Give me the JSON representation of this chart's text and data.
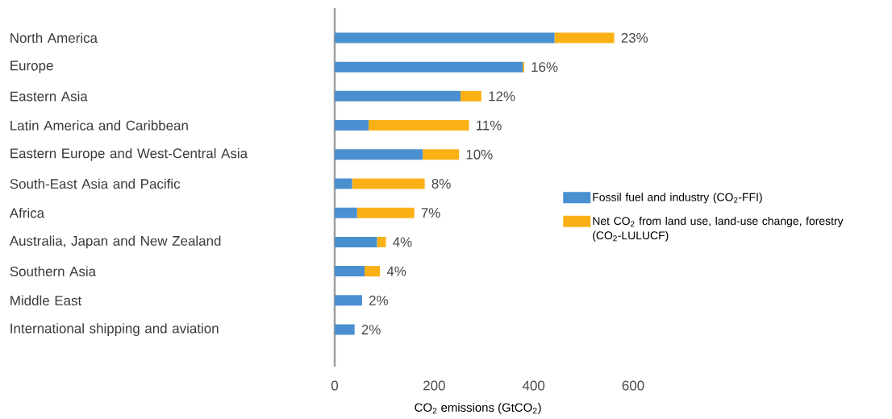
{
  "chart_data": {
    "type": "bar",
    "orientation": "horizontal",
    "stacked": true,
    "categories": [
      "North America",
      "Europe",
      "Eastern Asia",
      "Latin America and Caribbean",
      "Eastern Europe and West-Central Asia",
      "South-East Asia and Pacific",
      "Africa",
      "Australia, Japan and New Zealand",
      "Southern Asia",
      "Middle East",
      "International shipping and aviation"
    ],
    "series": [
      {
        "name": "Fossil fuel and industry (CO$_{2}$-FFI)",
        "color": "#4a8fd0",
        "values": [
          442,
          378,
          253,
          68,
          177,
          35,
          45,
          85,
          60,
          55,
          40
        ]
      },
      {
        "name": "Net CO$_{2}$ from land use, land-use change, forestry (CO$_{2}$-LULUCF)",
        "color": "#fbb116",
        "values": [
          120,
          3,
          42,
          202,
          73,
          146,
          115,
          18,
          31,
          null,
          null
        ]
      }
    ],
    "annotations": [
      {
        "text": "23%",
        "x": 562,
        "y": "North America"
      },
      {
        "text": "16%",
        "x": 381,
        "y": "Europe"
      },
      {
        "text": "12%",
        "x": 295,
        "y": "Eastern Asia"
      },
      {
        "text": "11%",
        "x": 270,
        "y": "Latin America and Caribbean"
      },
      {
        "text": "10%",
        "x": 250,
        "y": "Eastern Europe and West-Central Asia"
      },
      {
        "text": "8%",
        "x": 181,
        "y": "South-East Asia and Pacific"
      },
      {
        "text": "7%",
        "x": 160,
        "y": "Africa"
      },
      {
        "text": "4%",
        "x": 103,
        "y": "Australia, Japan and New Zealand"
      },
      {
        "text": "4%",
        "x": 91,
        "y": "Southern Asia"
      },
      {
        "text": "2%",
        "x": 55,
        "y": "Middle East"
      },
      {
        "text": "2%",
        "x": 40,
        "y": "International shipping and aviation"
      }
    ],
    "xlabel": "CO$_{2}$ emissions (GtCO$_{2}$)",
    "xlim": [
      0,
      600
    ],
    "xticks": [
      0,
      200,
      400,
      600
    ],
    "legend": "right"
  }
}
